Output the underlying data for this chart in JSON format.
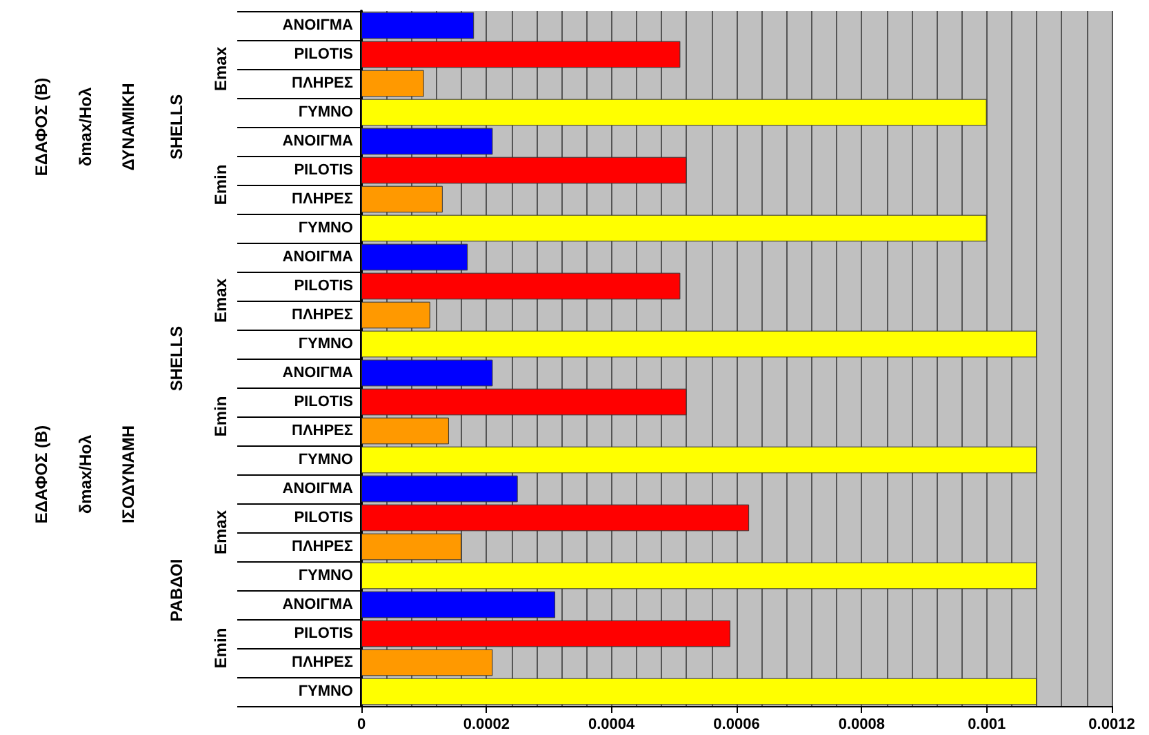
{
  "chart_data": {
    "type": "bar",
    "orientation": "horizontal",
    "categories": [
      "ΑΝΟΙΓΜΑ",
      "PILOTIS",
      "ΠΛΗΡΕΣ",
      "ΓΥΜΝΟ",
      "ΑΝΟΙΓΜΑ",
      "PILOTIS",
      "ΠΛΗΡΕΣ",
      "ΓΥΜΝΟ",
      "ΑΝΟΙΓΜΑ",
      "PILOTIS",
      "ΠΛΗΡΕΣ",
      "ΓΥΜΝΟ",
      "ΑΝΟΙΓΜΑ",
      "PILOTIS",
      "ΠΛΗΡΕΣ",
      "ΓΥΜΝΟ",
      "ΑΝΟΙΓΜΑ",
      "PILOTIS",
      "ΠΛΗΡΕΣ",
      "ΓΥΜΝΟ",
      "ΑΝΟΙΓΜΑ",
      "PILOTIS",
      "ΠΛΗΡΕΣ",
      "ΓΥΜΝΟ"
    ],
    "values": [
      0.00018,
      0.00051,
      0.0001,
      0.001,
      0.00021,
      0.00052,
      0.00013,
      0.001,
      0.00017,
      0.00051,
      0.00011,
      0.00108,
      0.00021,
      0.00052,
      0.00014,
      0.00108,
      0.00025,
      0.00062,
      0.00016,
      0.00108,
      0.00031,
      0.00059,
      0.00021,
      0.00108
    ],
    "colors": [
      "#0000ff",
      "#ff0000",
      "#ff9900",
      "#ffff00",
      "#0000ff",
      "#ff0000",
      "#ff9900",
      "#ffff00",
      "#0000ff",
      "#ff0000",
      "#ff9900",
      "#ffff00",
      "#0000ff",
      "#ff0000",
      "#ff9900",
      "#ffff00",
      "#0000ff",
      "#ff0000",
      "#ff9900",
      "#ffff00",
      "#0000ff",
      "#ff0000",
      "#ff9900",
      "#ffff00"
    ],
    "xlim": [
      0,
      0.0012
    ],
    "xticks": [
      0,
      0.0002,
      0.0004,
      0.0006,
      0.0008,
      0.001,
      0.0012
    ],
    "grid": "x",
    "annotations": [
      "ΕΔΑΦΟΣ (Β)",
      "δmax/Hολ",
      "ΔΥΝΑΜΙΚΗ",
      "SHELLS",
      "Emax",
      "Emin",
      "ΕΔΑΦΟΣ (Β)",
      "δmax/Hολ",
      "ΙΣΟΔΥΝΑΜΗ",
      "SHELLS",
      "Emax",
      "Emin",
      "ΡΑΒΔΟΙ",
      "Emax",
      "Emin"
    ]
  }
}
